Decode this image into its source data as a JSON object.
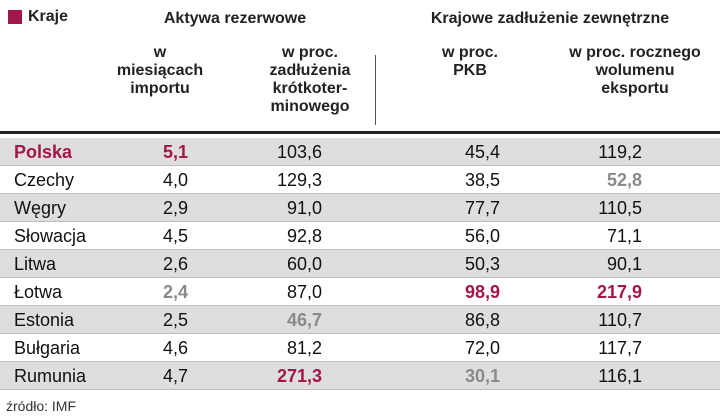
{
  "header": {
    "country_label": "Kraje",
    "group1": "Aktywa rezerwowe",
    "group2": "Krajowe zadłużenie zewnętrzne",
    "columns": [
      "w miesiącach importu",
      "w proc. zadłużenia krótkoter-minowego",
      "w proc. PKB",
      "w proc. rocznego wolumenu eksportu"
    ]
  },
  "table": {
    "rows": [
      [
        "Polska",
        "5,1",
        "103,6",
        "45,4",
        "119,2"
      ],
      [
        "Czechy",
        "4,0",
        "129,3",
        "38,5",
        "52,8"
      ],
      [
        "Węgry",
        "2,9",
        "91,0",
        "77,7",
        "110,5"
      ],
      [
        "Słowacja",
        "4,5",
        "92,8",
        "56,0",
        "71,1"
      ],
      [
        "Litwa",
        "2,6",
        "60,0",
        "50,3",
        "90,1"
      ],
      [
        "Łotwa",
        "2,4",
        "87,0",
        "98,9",
        "217,9"
      ],
      [
        "Estonia",
        "2,5",
        "46,7",
        "86,8",
        "110,7"
      ],
      [
        "Bułgaria",
        "4,6",
        "81,2",
        "72,0",
        "117,7"
      ],
      [
        "Rumunia",
        "4,7",
        "271,3",
        "30,1",
        "116,1"
      ]
    ]
  },
  "source": "źródło: IMF"
}
